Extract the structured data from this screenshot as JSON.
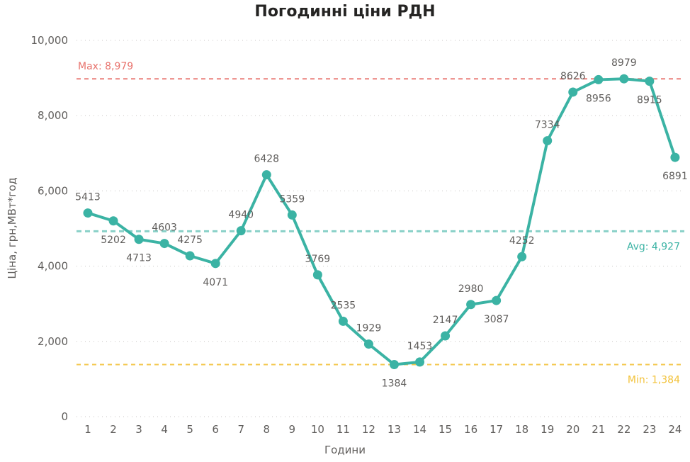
{
  "chart_data": {
    "type": "line",
    "title": "Погодинні ціни РДН",
    "xlabel": "Години",
    "ylabel": "Ціна, грн,МВт*год",
    "categories": [
      "1",
      "2",
      "3",
      "4",
      "5",
      "6",
      "7",
      "8",
      "9",
      "10",
      "11",
      "12",
      "13",
      "14",
      "15",
      "16",
      "17",
      "18",
      "19",
      "20",
      "21",
      "22",
      "23",
      "24"
    ],
    "series": [
      {
        "values": [
          5413,
          5202,
          4713,
          4603,
          4275,
          4071,
          4940,
          6428,
          5359,
          3769,
          2535,
          1929,
          1384,
          1453,
          2147,
          2980,
          3087,
          4252,
          7334,
          8626,
          8956,
          8979,
          8915,
          6891
        ],
        "data_labels": [
          "5413",
          "5202",
          "4713",
          "4603",
          "4275",
          "4071",
          "4940",
          "6428",
          "5359",
          "3769",
          "2535",
          "1929",
          "1384",
          "1453",
          "2147",
          "2980",
          "3087",
          "4252",
          "7334",
          "8626",
          "8956",
          "8979",
          "8915",
          "6891"
        ],
        "color": "#3bb3a4"
      }
    ],
    "y_ticks": [
      "0",
      "2,000",
      "4,000",
      "6,000",
      "8,000",
      "10,000"
    ],
    "y_tick_values": [
      0,
      2000,
      4000,
      6000,
      8000,
      10000
    ],
    "ylim": [
      0,
      10000
    ],
    "grid": true,
    "reference_lines": [
      {
        "label": "Max: 8,979",
        "value": 8979,
        "color": "#e8736d",
        "label_side": "left"
      },
      {
        "label": "Avg: 4,927",
        "value": 4927,
        "color": "#3bb3a4",
        "label_side": "right"
      },
      {
        "label": "Min: 1,384",
        "value": 1384,
        "color": "#f2c23a",
        "label_side": "right"
      }
    ]
  }
}
